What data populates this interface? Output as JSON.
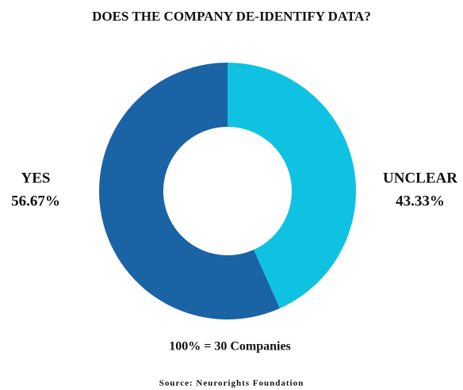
{
  "chart_data": {
    "type": "donut",
    "title": "DOES THE COMPANY DE-IDENTIFY DATA?",
    "categories": [
      "YES",
      "UNCLEAR"
    ],
    "values": [
      56.67,
      43.33
    ],
    "value_labels": [
      "56.67%",
      "43.33%"
    ],
    "colors": [
      "#1a63a5",
      "#0fc2e1"
    ],
    "annotation": "100% = 30 Companies",
    "source": "Source: Neurorights Foundation"
  }
}
